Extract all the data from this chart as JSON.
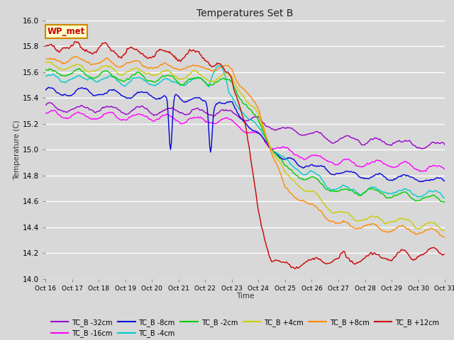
{
  "title": "Temperatures Set B",
  "xlabel": "Time",
  "ylabel": "Temperature (C)",
  "ylim": [
    14.0,
    16.0
  ],
  "yticks": [
    14.0,
    14.2,
    14.4,
    14.6,
    14.8,
    15.0,
    15.2,
    15.4,
    15.6,
    15.8,
    16.0
  ],
  "xtick_labels": [
    "Oct 16",
    "Oct 17",
    "Oct 18",
    "Oct 19",
    "Oct 20",
    "Oct 21",
    "Oct 22",
    "Oct 23",
    "Oct 24",
    "Oct 25",
    "Oct 26",
    "Oct 27",
    "Oct 28",
    "Oct 29",
    "Oct 30",
    "Oct 31"
  ],
  "annotation_label": "WP_met",
  "annotation_bg": "#ffffcc",
  "annotation_border": "#cc8800",
  "annotation_text_color": "#cc0000",
  "series": [
    {
      "label": "TC_B -32cm",
      "color": "#9900cc",
      "lw": 1.0
    },
    {
      "label": "TC_B -16cm",
      "color": "#ff00ff",
      "lw": 1.0
    },
    {
      "label": "TC_B -8cm",
      "color": "#0000dd",
      "lw": 1.0
    },
    {
      "label": "TC_B -4cm",
      "color": "#00cccc",
      "lw": 1.0
    },
    {
      "label": "TC_B -2cm",
      "color": "#00cc00",
      "lw": 1.0
    },
    {
      "label": "TC_B +4cm",
      "color": "#cccc00",
      "lw": 1.0
    },
    {
      "label": "TC_B +8cm",
      "color": "#ff8800",
      "lw": 1.0
    },
    {
      "label": "TC_B +12cm",
      "color": "#cc0000",
      "lw": 1.0
    }
  ],
  "fig_bg": "#d8d8d8",
  "plot_bg": "#d8d8d8",
  "n_points": 480,
  "seed": 42
}
